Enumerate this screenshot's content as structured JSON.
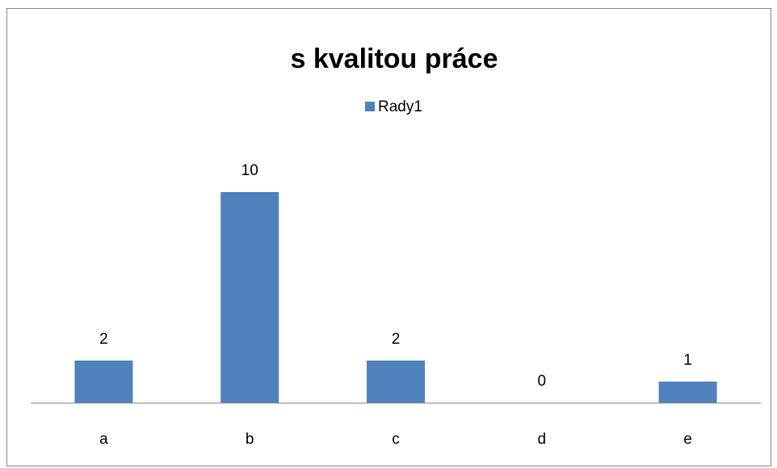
{
  "chart_data": {
    "type": "bar",
    "title": "s kvalitou práce",
    "categories": [
      "a",
      "b",
      "c",
      "d",
      "e"
    ],
    "series": [
      {
        "name": "Rady1",
        "color": "#4f81bd",
        "values": [
          2,
          10,
          2,
          0,
          1
        ]
      }
    ],
    "legend": "top"
  }
}
